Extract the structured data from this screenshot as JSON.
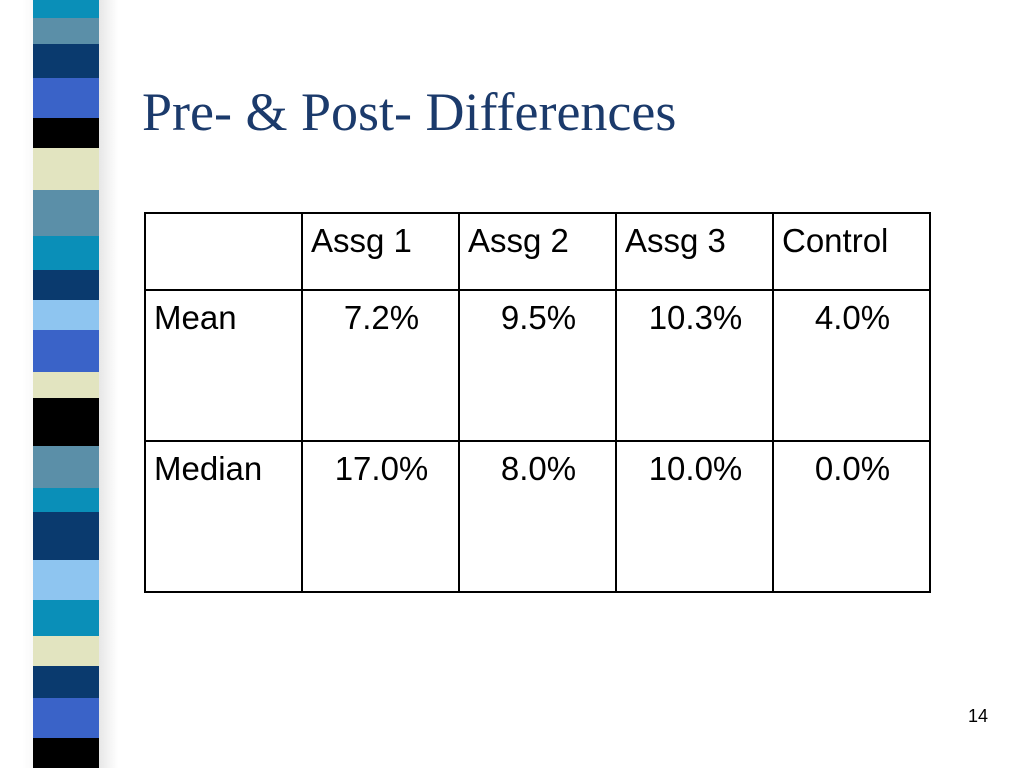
{
  "slide": {
    "title": "Pre- & Post- Differences",
    "page_number": "14"
  },
  "table": {
    "corner": "",
    "columns": [
      "Assg 1",
      "Assg 2",
      "Assg 3",
      "Control"
    ],
    "rows": [
      {
        "label": "Mean",
        "values": [
          "7.2%",
          "9.5%",
          "10.3%",
          "4.0%"
        ]
      },
      {
        "label": "Median",
        "values": [
          "17.0%",
          "8.0%",
          "10.0%",
          "0.0%"
        ]
      }
    ]
  },
  "colors": {
    "title": "#1b3a6b",
    "strip_navy": "#0a3a6e",
    "strip_royal": "#3a63c8",
    "strip_teal": "#0a8fb8",
    "strip_steel": "#5b8fa8",
    "strip_sky": "#8ec5f0",
    "strip_cream": "#e2e4c0",
    "strip_black": "#000000"
  }
}
